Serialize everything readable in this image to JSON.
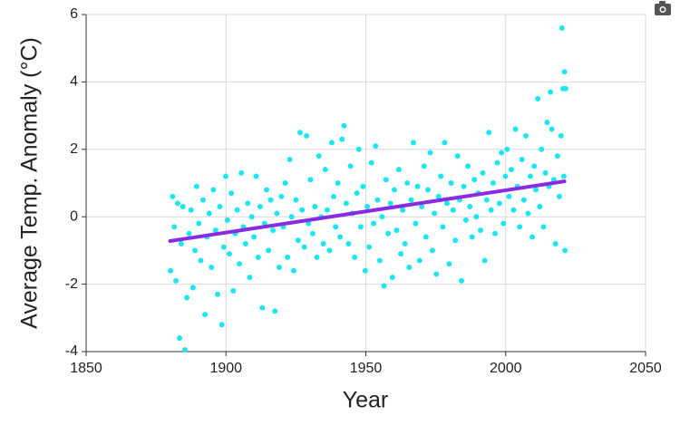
{
  "chart_data": {
    "type": "scatter",
    "x_label": "Year",
    "y_label": "Average Temp. Anomaly (°C)",
    "xlim": [
      1850,
      2050
    ],
    "xticks": [
      1850,
      1900,
      1950,
      2000,
      2050
    ],
    "ylim": [
      -4,
      6
    ],
    "yticks": [
      -4,
      -2,
      0,
      2,
      4,
      6
    ],
    "grid": true,
    "series": [
      {
        "mode": "markers",
        "color": "#1ee6f0",
        "x": [
          1880.2,
          1880.9,
          1881.5,
          1882.1,
          1882.7,
          1883.4,
          1884.0,
          1884.6,
          1885.3,
          1886.0,
          1886.8,
          1887.5,
          1888.2,
          1888.9,
          1889.5,
          1890.3,
          1891.0,
          1891.8,
          1892.5,
          1893.2,
          1894.0,
          1894.8,
          1895.5,
          1896.3,
          1897.0,
          1897.8,
          1898.5,
          1899.2,
          1899.9,
          1900.5,
          1901.2,
          1901.9,
          1902.6,
          1903.3,
          1904.0,
          1904.8,
          1905.5,
          1906.2,
          1907.0,
          1907.8,
          1908.5,
          1909.2,
          1910.0,
          1910.8,
          1911.5,
          1912.2,
          1913.0,
          1913.8,
          1914.5,
          1915.2,
          1916.0,
          1916.8,
          1917.5,
          1918.2,
          1919.0,
          1919.8,
          1920.5,
          1921.2,
          1922.0,
          1922.8,
          1923.5,
          1924.2,
          1925.0,
          1925.8,
          1926.5,
          1927.2,
          1928.0,
          1928.8,
          1929.5,
          1930.2,
          1931.0,
          1931.8,
          1932.5,
          1933.2,
          1934.0,
          1934.8,
          1935.5,
          1936.2,
          1937.0,
          1937.8,
          1938.5,
          1939.2,
          1940.0,
          1940.8,
          1941.5,
          1942.2,
          1943.0,
          1943.8,
          1944.5,
          1945.2,
          1946.0,
          1946.8,
          1947.5,
          1948.2,
          1949.0,
          1949.8,
          1950.5,
          1951.2,
          1952.0,
          1952.8,
          1953.5,
          1954.2,
          1955.0,
          1955.8,
          1956.5,
          1957.2,
          1958.0,
          1958.8,
          1959.5,
          1960.2,
          1961.0,
          1961.8,
          1962.5,
          1963.2,
          1964.0,
          1964.8,
          1965.5,
          1966.2,
          1967.0,
          1967.8,
          1968.5,
          1969.2,
          1970.0,
          1970.8,
          1971.5,
          1972.2,
          1973.0,
          1973.8,
          1974.5,
          1975.2,
          1976.0,
          1976.8,
          1977.5,
          1978.2,
          1979.0,
          1979.8,
          1980.5,
          1981.2,
          1982.0,
          1982.8,
          1983.5,
          1984.2,
          1985.0,
          1985.8,
          1986.5,
          1987.2,
          1988.0,
          1988.8,
          1989.5,
          1990.2,
          1991.0,
          1991.8,
          1992.5,
          1993.2,
          1994.0,
          1994.8,
          1995.5,
          1996.2,
          1997.0,
          1997.8,
          1998.5,
          1999.2,
          1999.9,
          2000.5,
          2001.2,
          2002.0,
          2002.8,
          2003.5,
          2004.2,
          2005.0,
          2005.8,
          2006.5,
          2007.2,
          2008.0,
          2008.8,
          2009.5,
          2010.2,
          2010.8,
          2011.5,
          2012.2,
          2012.8,
          2013.5,
          2014.2,
          2014.8,
          2015.5,
          2016.0,
          2016.5,
          2017.2,
          2017.8,
          2018.5,
          2019.2,
          2019.8,
          2020.1,
          2020.5,
          2020.8,
          2021.0,
          2021.2,
          2021.4
        ],
        "values": [
          -1.6,
          0.6,
          -0.3,
          -1.9,
          0.4,
          -3.6,
          -0.8,
          0.3,
          -3.95,
          -2.4,
          -0.5,
          0.2,
          -2.1,
          -1.0,
          0.9,
          -0.2,
          -1.3,
          0.5,
          -2.9,
          -0.6,
          0.1,
          -1.5,
          0.8,
          -0.4,
          -2.3,
          0.3,
          -3.2,
          -0.9,
          1.2,
          -0.1,
          -1.1,
          0.7,
          -2.2,
          -0.5,
          0.2,
          -1.4,
          1.3,
          -0.3,
          -0.8,
          0.4,
          -1.8,
          0.0,
          -0.6,
          1.2,
          -1.2,
          0.3,
          -2.7,
          -0.2,
          0.8,
          -1.0,
          0.5,
          -0.4,
          -2.8,
          0.1,
          -1.5,
          0.6,
          -0.3,
          1.0,
          -1.2,
          1.7,
          0.0,
          -1.6,
          0.5,
          -0.7,
          2.5,
          0.2,
          -0.9,
          2.4,
          -0.2,
          1.1,
          -0.5,
          0.3,
          -1.2,
          1.8,
          0.0,
          -0.8,
          1.4,
          0.2,
          -1.0,
          2.2,
          0.6,
          -0.3,
          1.0,
          -0.6,
          2.3,
          2.7,
          0.4,
          -0.8,
          1.5,
          0.1,
          -1.2,
          0.7,
          2.0,
          -0.3,
          0.9,
          -1.6,
          0.3,
          -0.9,
          1.6,
          -0.2,
          2.1,
          0.5,
          -1.3,
          0.0,
          -2.05,
          1.1,
          -0.5,
          0.4,
          -1.8,
          0.8,
          -0.4,
          1.4,
          -1.1,
          0.2,
          -0.8,
          1.0,
          -1.5,
          0.5,
          2.2,
          -0.2,
          0.9,
          -1.3,
          0.3,
          1.5,
          -0.6,
          0.8,
          1.9,
          -1.0,
          0.1,
          -1.7,
          0.6,
          1.2,
          -0.3,
          2.2,
          0.4,
          -1.4,
          1.0,
          0.2,
          -0.7,
          1.8,
          0.5,
          -1.9,
          0.9,
          -0.1,
          1.5,
          0.3,
          -0.6,
          1.1,
          0.0,
          0.7,
          -0.4,
          1.3,
          -1.3,
          0.5,
          2.5,
          0.2,
          1.0,
          -0.5,
          1.6,
          0.4,
          1.9,
          -0.2,
          1.2,
          2.0,
          0.6,
          1.4,
          0.2,
          2.6,
          0.9,
          -0.3,
          1.7,
          0.5,
          2.4,
          0.1,
          1.2,
          -0.6,
          1.5,
          0.8,
          3.5,
          0.3,
          2.0,
          -0.3,
          1.3,
          2.8,
          0.9,
          3.7,
          2.6,
          1.1,
          -0.8,
          1.8,
          0.6,
          2.4,
          5.6,
          3.8,
          1.2,
          4.3,
          -1.0,
          3.8
        ]
      },
      {
        "mode": "line",
        "color": "#8a2be2",
        "x": [
          1880,
          2021
        ],
        "values": [
          -0.72,
          1.05
        ]
      }
    ]
  }
}
